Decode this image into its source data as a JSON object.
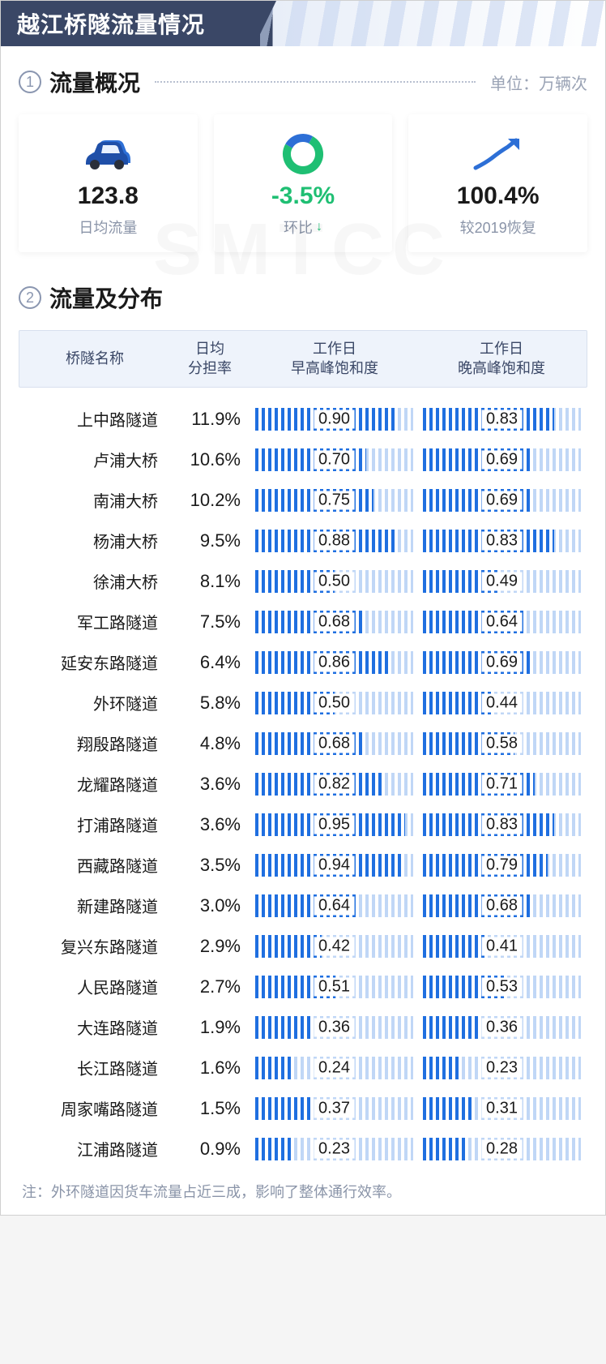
{
  "header": {
    "title": "越江桥隧流量情况"
  },
  "watermark": "SMTCC",
  "section1": {
    "num": "1",
    "title": "流量概况",
    "unit_label": "单位：万辆次"
  },
  "cards": {
    "daily_avg": {
      "value": "123.8",
      "label": "日均流量"
    },
    "mom": {
      "value": "-3.5%",
      "label": "环比",
      "arrow": "↓"
    },
    "recovery": {
      "value": "100.4%",
      "label": "较2019恢复"
    }
  },
  "section2": {
    "num": "2",
    "title": "流量及分布"
  },
  "table": {
    "columns": {
      "name": "桥隧名称",
      "share": "日均\n分担率",
      "morning": "工作日\n早高峰饱和度",
      "evening": "工作日\n晚高峰饱和度"
    },
    "bar": {
      "color_fg": "#1f6fe0",
      "color_track_opacity": 0.28,
      "max": 1.0
    },
    "rows": [
      {
        "name": "上中路隧道",
        "share": "11.9%",
        "morning": 0.9,
        "evening": 0.83
      },
      {
        "name": "卢浦大桥",
        "share": "10.6%",
        "morning": 0.7,
        "evening": 0.69
      },
      {
        "name": "南浦大桥",
        "share": "10.2%",
        "morning": 0.75,
        "evening": 0.69
      },
      {
        "name": "杨浦大桥",
        "share": "9.5%",
        "morning": 0.88,
        "evening": 0.83
      },
      {
        "name": "徐浦大桥",
        "share": "8.1%",
        "morning": 0.5,
        "evening": 0.49
      },
      {
        "name": "军工路隧道",
        "share": "7.5%",
        "morning": 0.68,
        "evening": 0.64
      },
      {
        "name": "延安东路隧道",
        "share": "6.4%",
        "morning": 0.86,
        "evening": 0.69
      },
      {
        "name": "外环隧道",
        "share": "5.8%",
        "morning": 0.5,
        "evening": 0.44
      },
      {
        "name": "翔殷路隧道",
        "share": "4.8%",
        "morning": 0.68,
        "evening": 0.58
      },
      {
        "name": "龙耀路隧道",
        "share": "3.6%",
        "morning": 0.82,
        "evening": 0.71
      },
      {
        "name": "打浦路隧道",
        "share": "3.6%",
        "morning": 0.95,
        "evening": 0.83
      },
      {
        "name": "西藏路隧道",
        "share": "3.5%",
        "morning": 0.94,
        "evening": 0.79
      },
      {
        "name": "新建路隧道",
        "share": "3.0%",
        "morning": 0.64,
        "evening": 0.68
      },
      {
        "name": "复兴东路隧道",
        "share": "2.9%",
        "morning": 0.42,
        "evening": 0.41
      },
      {
        "name": "人民路隧道",
        "share": "2.7%",
        "morning": 0.51,
        "evening": 0.53
      },
      {
        "name": "大连路隧道",
        "share": "1.9%",
        "morning": 0.36,
        "evening": 0.36
      },
      {
        "name": "长江路隧道",
        "share": "1.6%",
        "morning": 0.24,
        "evening": 0.23
      },
      {
        "name": "周家嘴路隧道",
        "share": "1.5%",
        "morning": 0.37,
        "evening": 0.31
      },
      {
        "name": "江浦路隧道",
        "share": "0.9%",
        "morning": 0.23,
        "evening": 0.28
      }
    ]
  },
  "footnote": "注：外环隧道因货车流量占近三成，影响了整体通行效率。",
  "colors": {
    "header_bg": "#3a4766",
    "accent_blue": "#1f6fe0",
    "green": "#1fbf73",
    "text": "#1a1a1a",
    "muted": "#8a94a8",
    "panel_bg": "#eef3fb"
  }
}
